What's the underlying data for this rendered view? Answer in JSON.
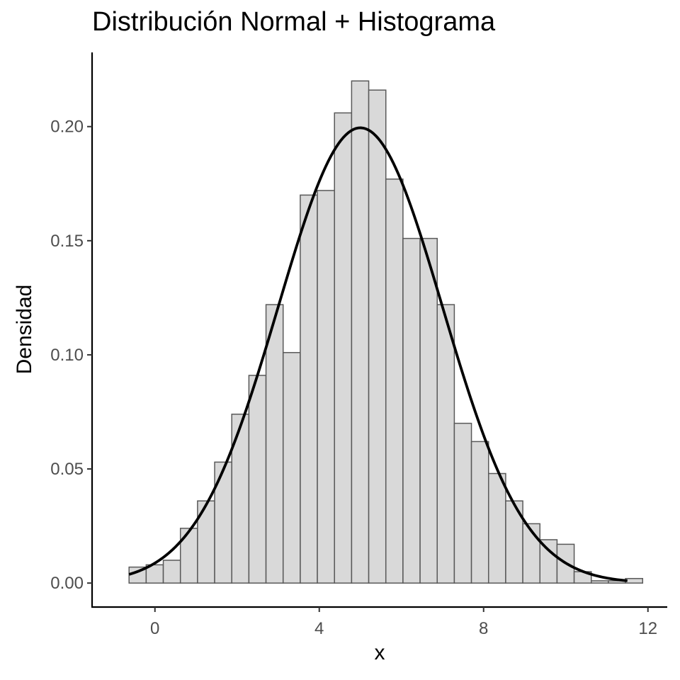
{
  "chart_data": {
    "type": "bar",
    "title": "Distribución Normal + Histograma",
    "xlabel": "x",
    "ylabel": "Densidad",
    "xlim": [
      -1.53,
      12.47
    ],
    "ylim": [
      -0.0105,
      0.2325
    ],
    "x_ticks": [
      0,
      4,
      8,
      12
    ],
    "x_tick_labels": [
      "0",
      "4",
      "8",
      "12"
    ],
    "y_ticks": [
      0.0,
      0.05,
      0.1,
      0.15,
      0.2
    ],
    "y_tick_labels": [
      "0.00",
      "0.05",
      "0.10",
      "0.15",
      "0.20"
    ],
    "grid": false,
    "bins": {
      "start": -0.63,
      "width": 0.4167,
      "values": [
        0.007,
        0.008,
        0.01,
        0.024,
        0.036,
        0.053,
        0.074,
        0.091,
        0.122,
        0.101,
        0.17,
        0.172,
        0.206,
        0.22,
        0.216,
        0.177,
        0.151,
        0.151,
        0.122,
        0.07,
        0.062,
        0.048,
        0.036,
        0.026,
        0.019,
        0.017,
        0.005,
        0.001,
        0.001,
        0.002
      ]
    },
    "bar_fill": "#d9d9d9",
    "bar_stroke": "#595959",
    "curve": {
      "distribution": "normal",
      "mean": 5,
      "sd": 2,
      "x_range": [
        -0.63,
        11.5
      ],
      "color": "#000000"
    }
  }
}
